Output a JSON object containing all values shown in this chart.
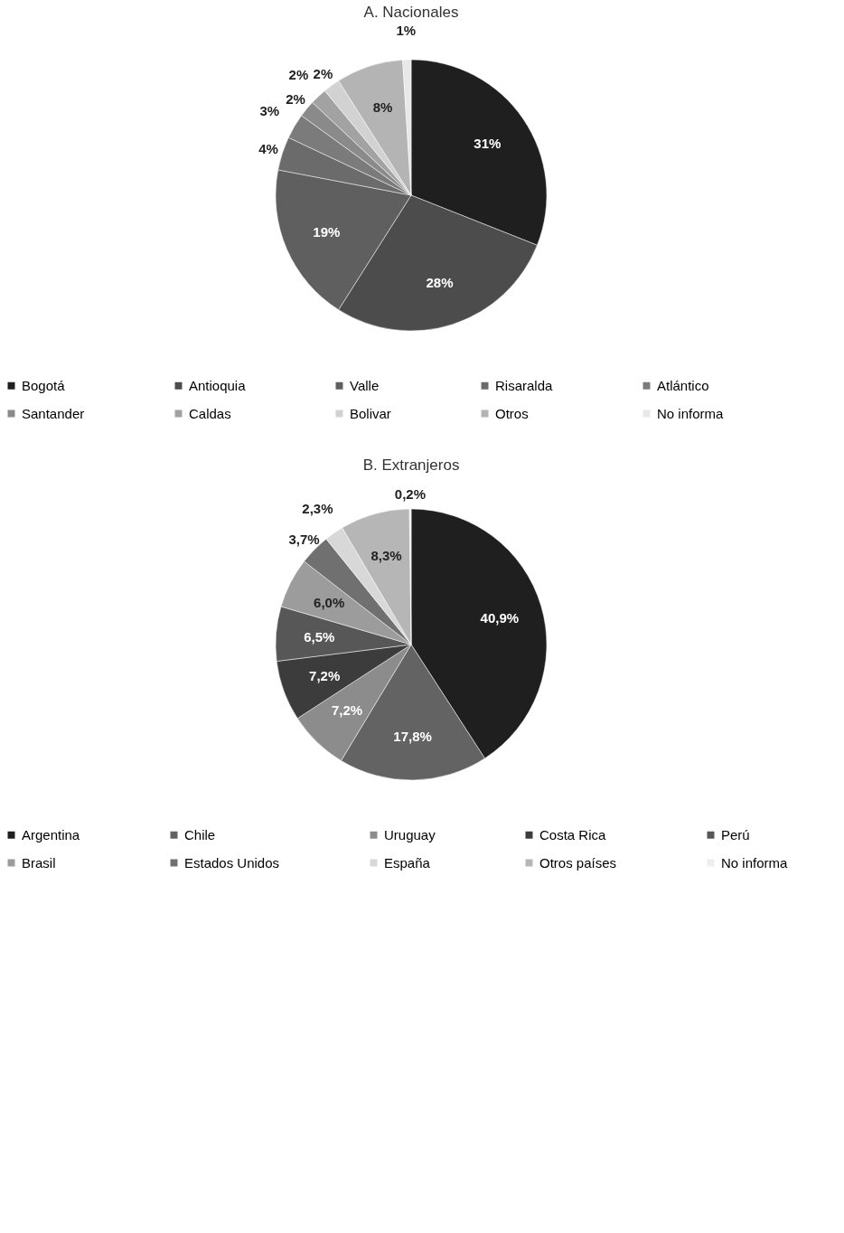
{
  "chart_data": [
    {
      "type": "pie",
      "title": "A. Nacionales",
      "legend": "bottom",
      "categories": [
        "Bogotá",
        "Antioquia",
        "Valle",
        "Risaralda",
        "Atlántico",
        "Santander",
        "Caldas",
        "Bolivar",
        "Otros",
        "No informa"
      ],
      "values": [
        31,
        28,
        19,
        4,
        3,
        2,
        2,
        2,
        8,
        1
      ],
      "value_labels": [
        "31%",
        "28%",
        "19%",
        "4%",
        "3%",
        "2%",
        "2%",
        "2%",
        "8%",
        "1%"
      ],
      "colors": [
        "#1f1f1f",
        "#4c4c4c",
        "#5f5f5f",
        "#6b6b6b",
        "#7b7b7b",
        "#8a8a8a",
        "#a2a2a2",
        "#d2d2d2",
        "#b4b4b4",
        "#e8e8e8"
      ]
    },
    {
      "type": "pie",
      "title": "B. Extranjeros",
      "legend": "bottom",
      "categories": [
        "Argentina",
        "Chile",
        "Uruguay",
        "Costa Rica",
        "Perú",
        "Brasil",
        "Estados Unidos",
        "España",
        "Otros países",
        "No informa"
      ],
      "values": [
        40.9,
        17.8,
        7.2,
        7.2,
        6.5,
        6.0,
        3.7,
        2.3,
        8.3,
        0.2
      ],
      "value_labels": [
        "40,9%",
        "17,8%",
        "7,2%",
        "7,2%",
        "6,5%",
        "6,0%",
        "3,7%",
        "2,3%",
        "8,3%",
        "0,2%"
      ],
      "colors": [
        "#1f1f1f",
        "#636363",
        "#8c8c8c",
        "#3c3c3c",
        "#575757",
        "#9c9c9c",
        "#707070",
        "#d8d8d8",
        "#b6b6b6",
        "#eeeeee"
      ]
    }
  ]
}
